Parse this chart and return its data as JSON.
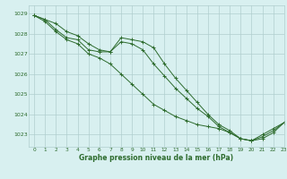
{
  "title": "Graphe pression niveau de la mer (hPa)",
  "background_color": "#d8f0f0",
  "grid_color": "#b0cece",
  "line_color": "#2d6b2d",
  "marker_color": "#2d6b2d",
  "xlim": [
    -0.5,
    23
  ],
  "ylim": [
    1022.4,
    1029.4
  ],
  "yticks": [
    1023,
    1024,
    1025,
    1026,
    1027,
    1028,
    1029
  ],
  "xticks": [
    0,
    1,
    2,
    3,
    4,
    5,
    6,
    7,
    8,
    9,
    10,
    11,
    12,
    13,
    14,
    15,
    16,
    17,
    18,
    19,
    20,
    21,
    22,
    23
  ],
  "series1_x": [
    0,
    1,
    2,
    3,
    4,
    5,
    6,
    7,
    8,
    9,
    10,
    11,
    12,
    13,
    14,
    15,
    16,
    17,
    18,
    19,
    20,
    21,
    22,
    23
  ],
  "series1_y": [
    1028.9,
    1028.7,
    1028.5,
    1028.1,
    1027.9,
    1027.5,
    1027.2,
    1027.1,
    1027.8,
    1027.7,
    1027.6,
    1027.3,
    1026.5,
    1025.8,
    1025.2,
    1024.6,
    1024.0,
    1023.5,
    1023.2,
    1022.8,
    1022.7,
    1023.0,
    1023.3,
    1023.6
  ],
  "series2_x": [
    0,
    1,
    2,
    3,
    4,
    5,
    6,
    7,
    8,
    9,
    10,
    11,
    12,
    13,
    14,
    15,
    16,
    17,
    18,
    19,
    20,
    21,
    22,
    23
  ],
  "series2_y": [
    1028.9,
    1028.7,
    1028.2,
    1027.8,
    1027.7,
    1027.2,
    1027.1,
    1027.1,
    1027.6,
    1027.5,
    1027.2,
    1026.5,
    1025.9,
    1025.3,
    1024.8,
    1024.3,
    1023.9,
    1023.4,
    1023.1,
    1022.8,
    1022.7,
    1022.9,
    1023.2,
    1023.6
  ],
  "series3_x": [
    0,
    1,
    2,
    3,
    4,
    5,
    6,
    7,
    8,
    9,
    10,
    11,
    12,
    13,
    14,
    15,
    16,
    17,
    18,
    19,
    20,
    21,
    22,
    23
  ],
  "series3_y": [
    1028.9,
    1028.6,
    1028.1,
    1027.7,
    1027.5,
    1027.0,
    1026.8,
    1026.5,
    1026.0,
    1025.5,
    1025.0,
    1024.5,
    1024.2,
    1023.9,
    1023.7,
    1023.5,
    1023.4,
    1023.3,
    1023.1,
    1022.8,
    1022.7,
    1022.8,
    1023.1,
    1023.6
  ]
}
